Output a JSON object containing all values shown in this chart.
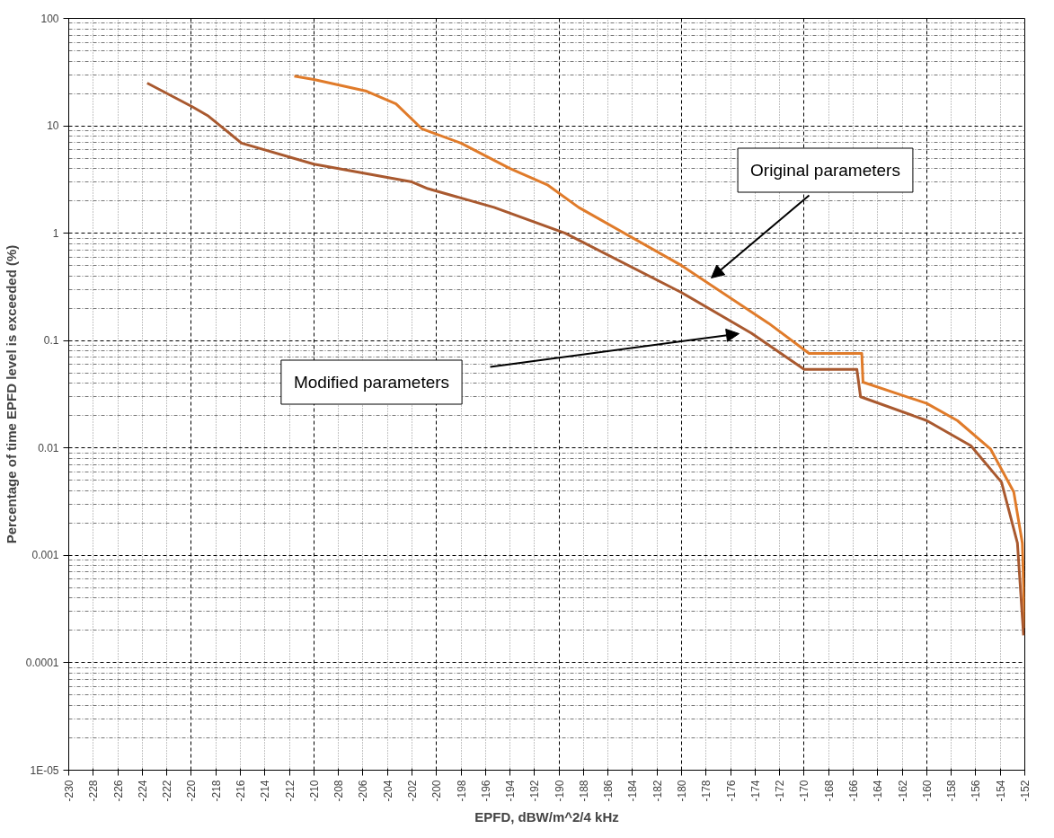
{
  "chart_data": {
    "type": "line",
    "xlabel": "EPFD, dBW/m^2/4 kHz",
    "ylabel": "Percentage of time EPFD level is exceeded (%)",
    "log": "y",
    "grid": true,
    "marker": "none",
    "line_style": "solid",
    "xlim": [
      -230,
      -152
    ],
    "xticks": [
      -230,
      -228,
      -226,
      -224,
      -222,
      -220,
      -218,
      -216,
      -214,
      -212,
      -210,
      -208,
      -206,
      -204,
      -202,
      -200,
      -198,
      -196,
      -194,
      -192,
      -190,
      -188,
      -186,
      -184,
      -182,
      -180,
      -178,
      -176,
      -174,
      -172,
      -170,
      -168,
      -166,
      -164,
      -162,
      -160,
      -158,
      -156,
      -154,
      -152
    ],
    "ylim": [
      1e-05,
      100
    ],
    "yticks": [
      {
        "value": 1e-05,
        "label": "1E-05"
      },
      0.0001,
      0.001,
      0.01,
      0.1,
      1,
      10,
      100
    ],
    "series": [
      {
        "color": "#e07b2a",
        "x": [
          -211.6,
          -210,
          -205.7,
          -203.3,
          -201.2,
          -198,
          -194,
          -190.9,
          -188.4,
          -180,
          -172.9,
          -169.6,
          -165.3,
          -165.2,
          -160,
          -157.5,
          -154.8,
          -152.9,
          -152.2,
          -152
        ],
        "values": [
          29,
          27,
          21,
          16,
          9.4,
          6.9,
          4.0,
          2.8,
          1.74,
          0.5,
          0.145,
          0.076,
          0.076,
          0.041,
          0.026,
          0.018,
          0.0098,
          0.0039,
          0.0013,
          0.00021
        ]
      },
      {
        "color": "#a9592f",
        "x": [
          -223.6,
          -219.9,
          -218.6,
          -215.9,
          -210,
          -202,
          -200.7,
          -195.3,
          -189.5,
          -180,
          -174.3,
          -170,
          -165.7,
          -165.4,
          -160,
          -156.4,
          -153.9,
          -152.6,
          -152.1
        ],
        "values": [
          25,
          15,
          12.3,
          6.9,
          4.4,
          3.0,
          2.6,
          1.74,
          1.0,
          0.28,
          0.117,
          0.054,
          0.054,
          0.03,
          0.018,
          0.0105,
          0.0048,
          0.0013,
          0.00018
        ]
      }
    ],
    "annotations": [
      "Original parameters",
      "Modified parameters"
    ]
  }
}
